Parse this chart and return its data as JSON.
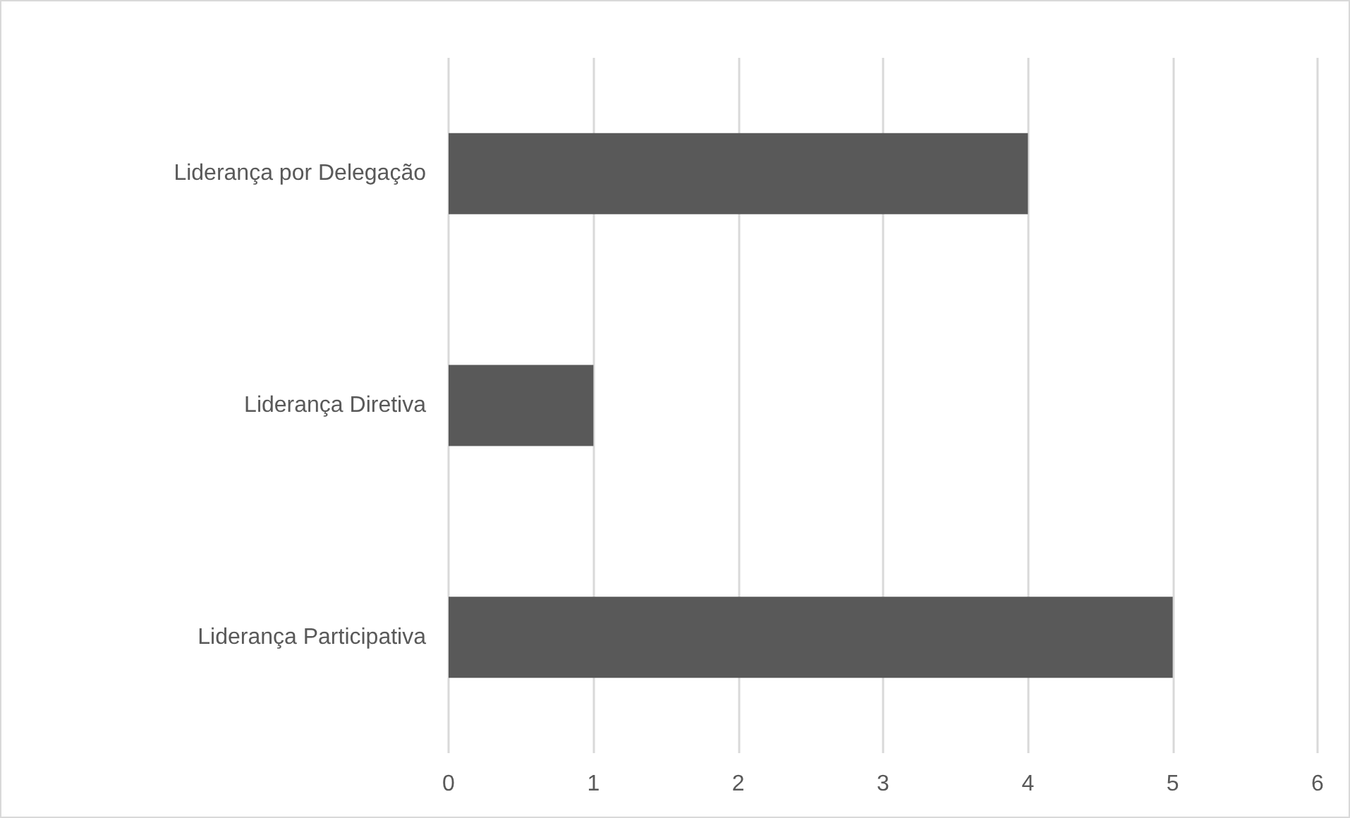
{
  "chart_data": {
    "type": "bar",
    "orientation": "horizontal",
    "categories": [
      "Liderança por Delegação",
      "Liderança Diretiva",
      "Liderança Participativa"
    ],
    "values": [
      4,
      1,
      5
    ],
    "color": "#595959",
    "xlim": [
      0,
      6
    ],
    "xticks": [
      0,
      1,
      2,
      3,
      4,
      5,
      6
    ],
    "grid": "x"
  }
}
